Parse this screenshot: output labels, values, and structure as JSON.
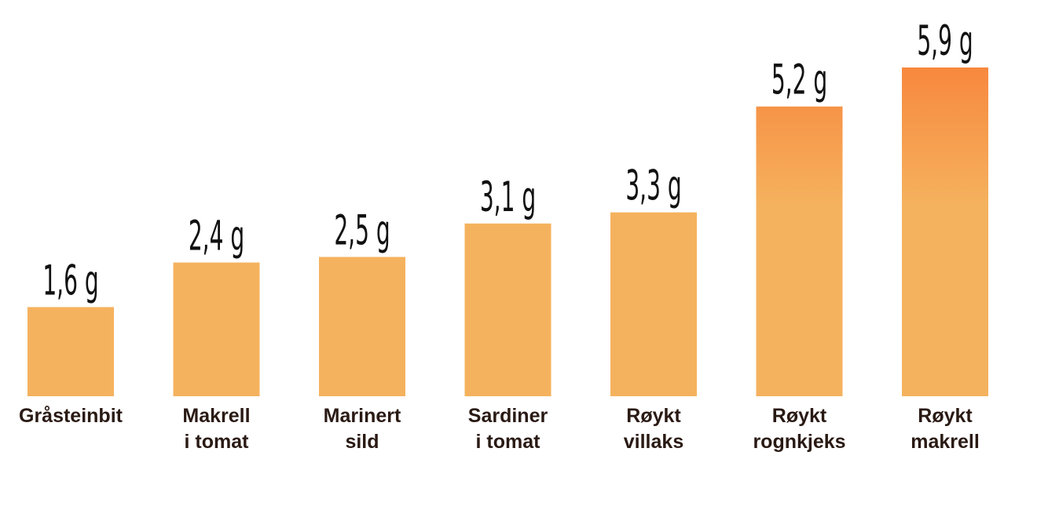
{
  "chart_data": {
    "type": "bar",
    "unit": "g",
    "categories": [
      [
        "Gråsteinbit"
      ],
      [
        "Makrell",
        "i tomat"
      ],
      [
        "Marinert",
        "sild"
      ],
      [
        "Sardiner",
        "i tomat"
      ],
      [
        "Røykt",
        "villaks"
      ],
      [
        "Røykt",
        "rognkjeks"
      ],
      [
        "Røykt",
        "makrell"
      ]
    ],
    "values": [
      1.6,
      2.4,
      2.5,
      3.1,
      3.3,
      5.2,
      5.9
    ],
    "value_labels": [
      "1,6 g",
      "2,4 g",
      "2,5 g",
      "3,1 g",
      "3,3 g",
      "5,2 g",
      "5,9 g"
    ],
    "ylim": [
      0,
      5.9
    ],
    "grid": false,
    "colors": {
      "bar_base": "#F5B25E",
      "bar_high": "#F7883E",
      "label_text": "#2a1a14",
      "value_text": "#111111"
    }
  }
}
